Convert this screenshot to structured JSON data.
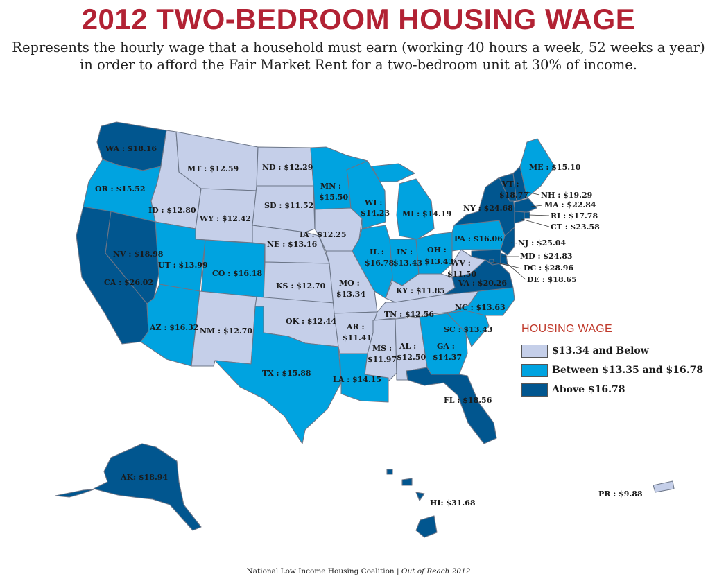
{
  "title": "2012 TWO-BEDROOM HOUSING WAGE",
  "subtitle_line1": "Represents the hourly wage that a household must earn (working 40 hours a week, 52 weeks a year)",
  "subtitle_line2": "in order to afford the Fair Market Rent for a two-bedroom unit at 30% of income.",
  "legend": {
    "title": "HOUSING WAGE",
    "items": [
      {
        "label": "$13.34 and Below",
        "color": "#c5cfe9"
      },
      {
        "label": "Between $13.35 and $16.78",
        "color": "#00a3e0"
      },
      {
        "label": "Above $16.78",
        "color": "#01568f"
      }
    ]
  },
  "footer_org": "National Low Income Housing Coalition",
  "footer_sep": "|",
  "footer_pub": "Out of Reach 2012",
  "colors": {
    "low": "#c5cfe9",
    "mid": "#00a3e0",
    "high": "#01568f",
    "title": "#b22234"
  },
  "states": {
    "WA": {
      "label": "WA : $18.16",
      "tier": "high"
    },
    "OR": {
      "label": "OR : $15.52",
      "tier": "mid"
    },
    "CA": {
      "label": "CA : $26.02",
      "tier": "high"
    },
    "NV": {
      "label": "NV : $18.98",
      "tier": "high"
    },
    "ID": {
      "label": "ID : $12.80",
      "tier": "low"
    },
    "MT": {
      "label": "MT : $12.59",
      "tier": "low"
    },
    "WY": {
      "label": "WY : $12.42",
      "tier": "low"
    },
    "UT": {
      "label": "UT : $13.99",
      "tier": "mid"
    },
    "CO": {
      "label": "CO : $16.18",
      "tier": "mid"
    },
    "AZ": {
      "label": "AZ : $16.32",
      "tier": "mid"
    },
    "NM": {
      "label": "NM : $12.70",
      "tier": "low"
    },
    "ND": {
      "label": "ND : $12.29",
      "tier": "low"
    },
    "SD": {
      "label": "SD : $11.52",
      "tier": "low"
    },
    "NE": {
      "label": "NE : $13.16",
      "tier": "low"
    },
    "KS": {
      "label": "KS : $12.70",
      "tier": "low"
    },
    "OK": {
      "label": "OK : $12.44",
      "tier": "low"
    },
    "TX": {
      "label": "TX : $15.88",
      "tier": "mid"
    },
    "MN": {
      "label_l1": "MN :",
      "label_l2": "$15.50",
      "tier": "mid"
    },
    "IA": {
      "label": "IA : $12.25",
      "tier": "low"
    },
    "MO": {
      "label_l1": "MO :",
      "label_l2": "$13.34",
      "tier": "low"
    },
    "AR": {
      "label_l1": "AR :",
      "label_l2": "$11.41",
      "tier": "low"
    },
    "LA": {
      "label": "LA : $14.15",
      "tier": "mid"
    },
    "WI": {
      "label_l1": "WI :",
      "label_l2": "$14.23",
      "tier": "mid"
    },
    "IL": {
      "label_l1": "IL :",
      "label_l2": "$16.78",
      "tier": "mid"
    },
    "MI": {
      "label": "MI : $14.19",
      "tier": "mid"
    },
    "IN": {
      "label_l1": "IN :",
      "label_l2": "$13.43",
      "tier": "mid"
    },
    "OH": {
      "label_l1": "OH :",
      "label_l2": "$13.43",
      "tier": "mid"
    },
    "KY": {
      "label": "KY : $11.85",
      "tier": "low"
    },
    "TN": {
      "label": "TN : $12.56",
      "tier": "low"
    },
    "MS": {
      "label_l1": "MS :",
      "label_l2": "$11.97",
      "tier": "low"
    },
    "AL": {
      "label_l1": "AL :",
      "label_l2": "$12.50",
      "tier": "low"
    },
    "GA": {
      "label_l1": "GA :",
      "label_l2": "$14.37",
      "tier": "mid"
    },
    "FL": {
      "label": "FL : $18.56",
      "tier": "high"
    },
    "SC": {
      "label": "SC : $13.43",
      "tier": "mid"
    },
    "NC": {
      "label": "NC : $13.63",
      "tier": "mid"
    },
    "VA": {
      "label": "VA : $20.26",
      "tier": "high"
    },
    "WV": {
      "label_l1": "WV :",
      "label_l2": "$11.50",
      "tier": "low"
    },
    "PA": {
      "label": "PA : $16.06",
      "tier": "mid"
    },
    "NY": {
      "label": "NY : $24.68",
      "tier": "high"
    },
    "VT": {
      "label_l1": "VT :",
      "label_l2": "$18.77",
      "tier": "high"
    },
    "ME": {
      "label": "ME : $15.10",
      "tier": "mid"
    },
    "NH": {
      "label": "NH : $19.29",
      "tier": "high"
    },
    "MA": {
      "label": "MA : $22.84",
      "tier": "high"
    },
    "RI": {
      "label": "RI : $17.78",
      "tier": "high"
    },
    "CT": {
      "label": "CT : $23.58",
      "tier": "high"
    },
    "NJ": {
      "label": "NJ : $25.04",
      "tier": "high"
    },
    "MD": {
      "label": "MD : $24.83",
      "tier": "high"
    },
    "DC": {
      "label": "DC : $28.96",
      "tier": "high"
    },
    "DE": {
      "label": "DE : $18.65",
      "tier": "high"
    },
    "AK": {
      "label": "AK: $18.94",
      "tier": "high"
    },
    "HI": {
      "label": "HI: $31.68",
      "tier": "high"
    },
    "PR": {
      "label": "PR : $9.88",
      "tier": "low"
    }
  }
}
